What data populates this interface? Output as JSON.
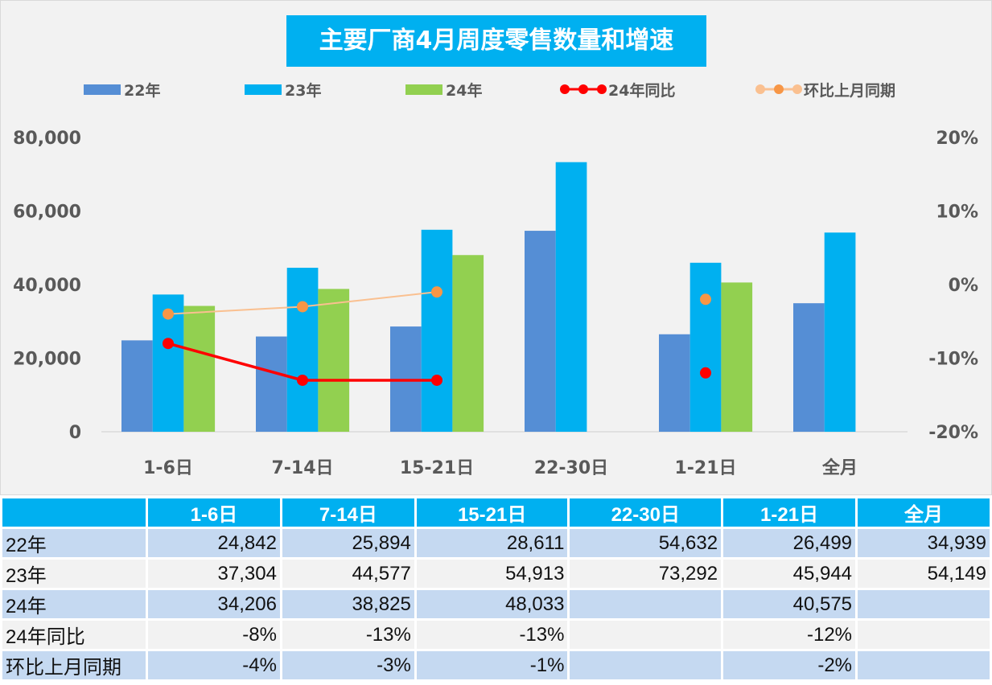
{
  "chart_data": {
    "type": "bar",
    "title": "主要厂商4月周度零售数量和增速",
    "categories": [
      "1-6日",
      "7-14日",
      "15-21日",
      "22-30日",
      "1-21日",
      "全月"
    ],
    "series": [
      {
        "name": "22年",
        "kind": "bar",
        "axis": "left",
        "color": "#558ed5",
        "values": [
          24842,
          25894,
          28611,
          54632,
          26499,
          34939
        ]
      },
      {
        "name": "23年",
        "kind": "bar",
        "axis": "left",
        "color": "#00b0f0",
        "values": [
          37304,
          44577,
          54913,
          73292,
          45944,
          54149
        ]
      },
      {
        "name": "24年",
        "kind": "bar",
        "axis": "left",
        "color": "#92d050",
        "values": [
          34206,
          38825,
          48033,
          null,
          40575,
          null
        ]
      },
      {
        "name": "24年同比",
        "kind": "line",
        "axis": "right",
        "color": "#ff0000",
        "values": [
          -8,
          -13,
          -13,
          null,
          -12,
          null
        ]
      },
      {
        "name": "环比上月同期",
        "kind": "line",
        "axis": "right",
        "color": "#fac090",
        "marker_color": "#f79646",
        "values": [
          -4,
          -3,
          -1,
          null,
          -2,
          null
        ]
      }
    ],
    "ylim": [
      0,
      80000
    ],
    "yticks": [
      "0",
      "20,000",
      "40,000",
      "60,000",
      "80,000"
    ],
    "y2lim": [
      -20,
      20
    ],
    "y2ticks": [
      "-20%",
      "-10%",
      "0%",
      "10%",
      "20%"
    ],
    "grid": false,
    "legend": "top"
  },
  "table": {
    "header": [
      "",
      "1-6日",
      "7-14日",
      "15-21日",
      "22-30日",
      "1-21日",
      "全月"
    ],
    "rows": [
      [
        "22年",
        "24,842",
        "25,894",
        "28,611",
        "54,632",
        "26,499",
        "34,939"
      ],
      [
        "23年",
        "37,304",
        "44,577",
        "54,913",
        "73,292",
        "45,944",
        "54,149"
      ],
      [
        "24年",
        "34,206",
        "38,825",
        "48,033",
        "",
        "40,575",
        ""
      ],
      [
        "24年同比",
        "-8%",
        "-13%",
        "-13%",
        "",
        "-12%",
        ""
      ],
      [
        "环比上月同期",
        "-4%",
        "-3%",
        "-1%",
        "",
        "-2%",
        ""
      ]
    ]
  }
}
